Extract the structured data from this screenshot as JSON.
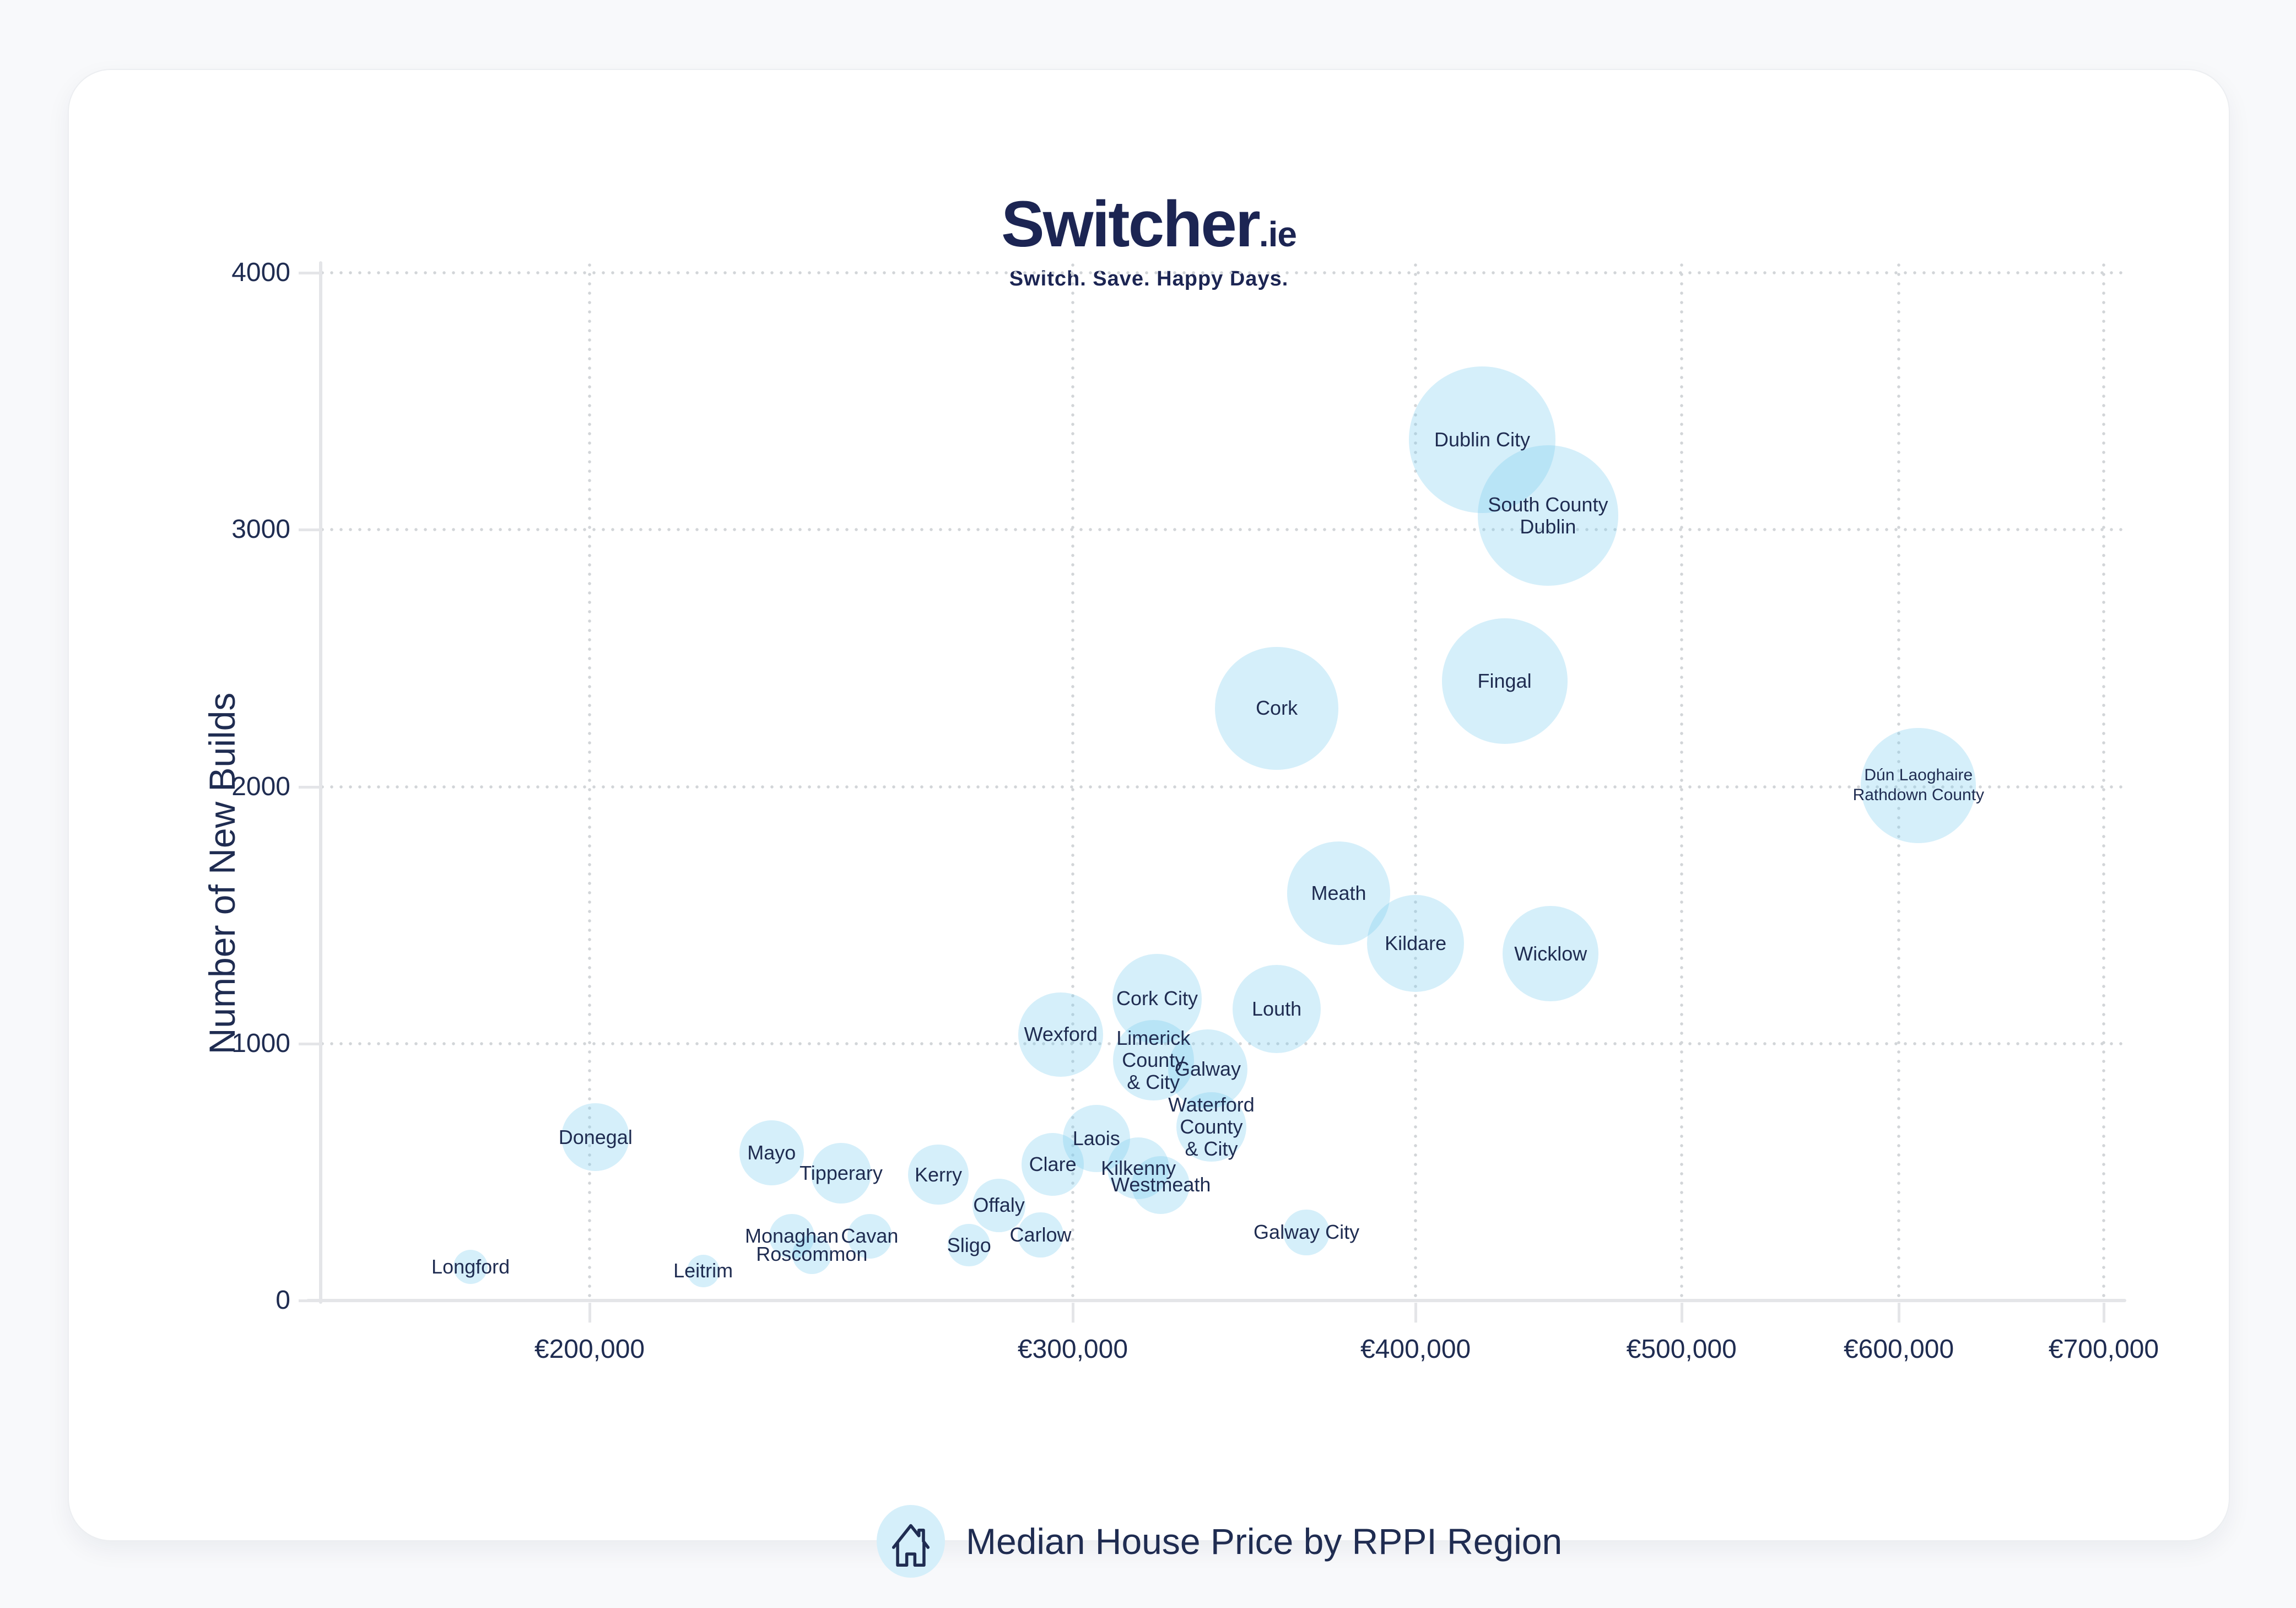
{
  "page": {
    "background": "#f8f9fb",
    "card_background": "#ffffff"
  },
  "logo": {
    "brand": "Switcher",
    "tld": ".ie",
    "tagline": "Switch. Save. Happy Days."
  },
  "chart_data": {
    "type": "bubble",
    "title": "Median House Price by RPPI Region",
    "xlabel": "Median House Price by RPPI Region",
    "ylabel": "Number of New Builds",
    "x_scale": "log",
    "xlim": [
      160000,
      720000
    ],
    "ylim": [
      0,
      4000
    ],
    "grid": true,
    "legend": "none",
    "size_encodes": "new_builds",
    "x_ticks": [
      {
        "label": "€200,000",
        "value": 200000
      },
      {
        "label": "€300,000",
        "value": 300000
      },
      {
        "label": "€400,000",
        "value": 400000
      },
      {
        "label": "€500,000",
        "value": 500000
      },
      {
        "label": "€600,000",
        "value": 600000
      },
      {
        "label": "€700,000",
        "value": 700000
      }
    ],
    "y_ticks": [
      {
        "label": "0",
        "value": 0
      },
      {
        "label": "1000",
        "value": 1000
      },
      {
        "label": "2000",
        "value": 2000
      },
      {
        "label": "3000",
        "value": 3000
      },
      {
        "label": "4000",
        "value": 4000
      }
    ],
    "points": [
      {
        "region": "Longford",
        "price_eur": 181000,
        "new_builds": 130,
        "label_lines": [
          "Longford"
        ]
      },
      {
        "region": "Donegal",
        "price_eur": 201000,
        "new_builds": 635,
        "label_lines": [
          "Donegal"
        ]
      },
      {
        "region": "Leitrim",
        "price_eur": 220000,
        "new_builds": 115,
        "label_lines": [
          "Leitrim"
        ]
      },
      {
        "region": "Mayo",
        "price_eur": 233000,
        "new_builds": 575,
        "label_lines": [
          "Mayo"
        ]
      },
      {
        "region": "Monaghan",
        "price_eur": 237000,
        "new_builds": 250,
        "label_lines": [
          "Monaghan"
        ]
      },
      {
        "region": "Roscommon",
        "price_eur": 241000,
        "new_builds": 180,
        "label_lines": [
          "Roscommon"
        ]
      },
      {
        "region": "Tipperary",
        "price_eur": 247000,
        "new_builds": 495,
        "label_lines": [
          "Tipperary"
        ]
      },
      {
        "region": "Cavan",
        "price_eur": 253000,
        "new_builds": 250,
        "label_lines": [
          "Cavan"
        ]
      },
      {
        "region": "Kerry",
        "price_eur": 268000,
        "new_builds": 490,
        "label_lines": [
          "Kerry"
        ]
      },
      {
        "region": "Sligo",
        "price_eur": 275000,
        "new_builds": 215,
        "label_lines": [
          "Sligo"
        ]
      },
      {
        "region": "Offaly",
        "price_eur": 282000,
        "new_builds": 370,
        "label_lines": [
          "Offaly"
        ]
      },
      {
        "region": "Carlow",
        "price_eur": 292000,
        "new_builds": 255,
        "label_lines": [
          "Carlow"
        ]
      },
      {
        "region": "Clare",
        "price_eur": 295000,
        "new_builds": 530,
        "label_lines": [
          "Clare"
        ]
      },
      {
        "region": "Wexford",
        "price_eur": 297000,
        "new_builds": 1035,
        "label_lines": [
          "Wexford"
        ]
      },
      {
        "region": "Laois",
        "price_eur": 306000,
        "new_builds": 630,
        "label_lines": [
          "Laois"
        ]
      },
      {
        "region": "Kilkenny",
        "price_eur": 317000,
        "new_builds": 515,
        "label_lines": [
          "Kilkenny"
        ]
      },
      {
        "region": "Limerick County & City",
        "price_eur": 321000,
        "new_builds": 935,
        "label_lines": [
          "Limerick",
          "County",
          "& City"
        ]
      },
      {
        "region": "Cork City",
        "price_eur": 322000,
        "new_builds": 1175,
        "label_lines": [
          "Cork City"
        ]
      },
      {
        "region": "Westmeath",
        "price_eur": 323000,
        "new_builds": 450,
        "label_lines": [
          "Westmeath"
        ]
      },
      {
        "region": "Galway",
        "price_eur": 336000,
        "new_builds": 900,
        "label_lines": [
          "Galway"
        ]
      },
      {
        "region": "Waterford County & City",
        "price_eur": 337000,
        "new_builds": 675,
        "label_lines": [
          "Waterford",
          "County",
          "& City"
        ]
      },
      {
        "region": "Cork",
        "price_eur": 356000,
        "new_builds": 2305,
        "label_lines": [
          "Cork"
        ]
      },
      {
        "region": "Louth",
        "price_eur": 356000,
        "new_builds": 1135,
        "label_lines": [
          "Louth"
        ]
      },
      {
        "region": "Galway City",
        "price_eur": 365000,
        "new_builds": 265,
        "label_lines": [
          "Galway City"
        ]
      },
      {
        "region": "Meath",
        "price_eur": 375000,
        "new_builds": 1585,
        "label_lines": [
          "Meath"
        ]
      },
      {
        "region": "Kildare",
        "price_eur": 400000,
        "new_builds": 1390,
        "label_lines": [
          "Kildare"
        ]
      },
      {
        "region": "Dublin City",
        "price_eur": 423000,
        "new_builds": 3350,
        "label_lines": [
          "Dublin City"
        ]
      },
      {
        "region": "Fingal",
        "price_eur": 431000,
        "new_builds": 2410,
        "label_lines": [
          "Fingal"
        ]
      },
      {
        "region": "South County Dublin",
        "price_eur": 447000,
        "new_builds": 3055,
        "label_lines": [
          "South County",
          "Dublin"
        ]
      },
      {
        "region": "Wicklow",
        "price_eur": 448000,
        "new_builds": 1350,
        "label_lines": [
          "Wicklow"
        ]
      },
      {
        "region": "Dún Laoghaire Rathdown County",
        "price_eur": 610000,
        "new_builds": 2005,
        "label_lines": [
          "Dún Laoghaire",
          "Rathdown County"
        ],
        "label_small": true
      }
    ]
  },
  "colors": {
    "navy": "#1f2c51",
    "logo_navy": "#1c2553",
    "bubble": "#7dcdf0",
    "bubble_opacity": 0.32,
    "grid_dot": "#d2d5d8",
    "axis_line": "#e4e5e8",
    "icon_circle": "#d5effa"
  }
}
